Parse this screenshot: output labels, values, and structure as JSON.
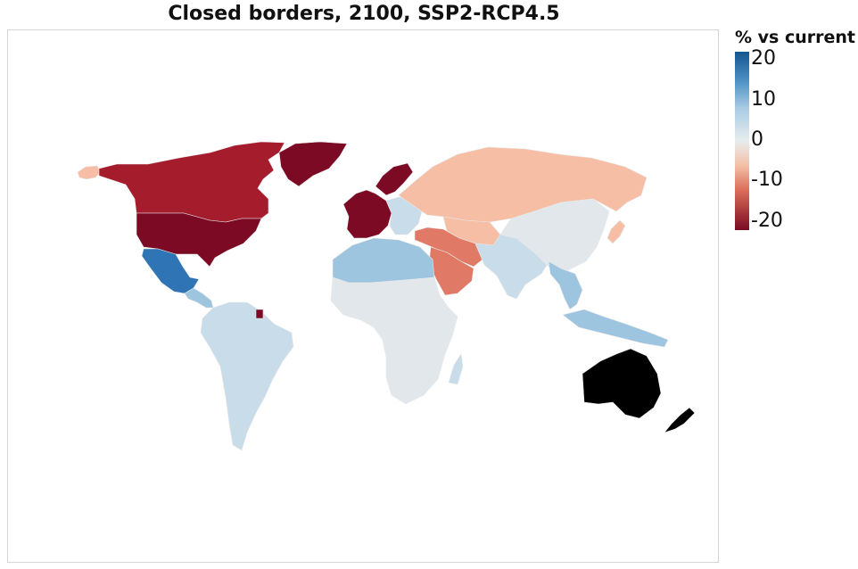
{
  "title": "Closed borders, 2100, SSP2-RCP4.5",
  "legend": {
    "title": "% vs current",
    "ticks": [
      {
        "label": "20",
        "value": 20
      },
      {
        "label": "10",
        "value": 10
      },
      {
        "label": "0",
        "value": 0
      },
      {
        "label": "-10",
        "value": -10
      },
      {
        "label": "-20",
        "value": -20
      }
    ],
    "range": [
      -22,
      22
    ],
    "gradient_stops": [
      {
        "value": 22,
        "color": "#14568f"
      },
      {
        "value": 15,
        "color": "#4a8fc2"
      },
      {
        "value": 8,
        "color": "#a9cce3"
      },
      {
        "value": 0,
        "color": "#e8ecef"
      },
      {
        "value": -6,
        "color": "#f4c0a6"
      },
      {
        "value": -12,
        "color": "#dc6f5b"
      },
      {
        "value": -22,
        "color": "#7a0a22"
      }
    ]
  },
  "colors": {
    "deep_red": "#7d0a25",
    "dark_red": "#a51c2c",
    "mid_red": "#e07a66",
    "light_salmon": "#f6bea4",
    "neutral": "#e2e7eb",
    "light_blue": "#c8dcea",
    "mid_blue": "#9dc5df",
    "strong_blue": "#2f74b4",
    "no_data": "#000000"
  },
  "regions": [
    {
      "name": "Canada",
      "color_key": "dark_red"
    },
    {
      "name": "Alaska",
      "color_key": "light_salmon"
    },
    {
      "name": "United States",
      "color_key": "deep_red"
    },
    {
      "name": "Greenland",
      "color_key": "deep_red"
    },
    {
      "name": "Mexico",
      "color_key": "strong_blue"
    },
    {
      "name": "Central America",
      "color_key": "mid_blue"
    },
    {
      "name": "South America",
      "color_key": "light_blue"
    },
    {
      "name": "French Guiana",
      "color_key": "deep_red"
    },
    {
      "name": "Western Europe",
      "color_key": "deep_red"
    },
    {
      "name": "Scandinavia",
      "color_key": "deep_red"
    },
    {
      "name": "Eastern Europe",
      "color_key": "light_blue"
    },
    {
      "name": "Russia",
      "color_key": "light_salmon"
    },
    {
      "name": "Turkey and Iran",
      "color_key": "mid_red"
    },
    {
      "name": "Arabian Peninsula",
      "color_key": "mid_red"
    },
    {
      "name": "North Africa",
      "color_key": "mid_blue"
    },
    {
      "name": "Sub-Saharan Africa",
      "color_key": "neutral"
    },
    {
      "name": "Madagascar",
      "color_key": "light_blue"
    },
    {
      "name": "Central Asia",
      "color_key": "light_salmon"
    },
    {
      "name": "South Asia",
      "color_key": "light_blue"
    },
    {
      "name": "China and Mongolia",
      "color_key": "neutral"
    },
    {
      "name": "Japan",
      "color_key": "light_salmon"
    },
    {
      "name": "Southeast Asia",
      "color_key": "mid_blue"
    },
    {
      "name": "Indonesia",
      "color_key": "mid_blue"
    },
    {
      "name": "Australia",
      "color_key": "no_data"
    },
    {
      "name": "New Zealand",
      "color_key": "no_data"
    }
  ]
}
